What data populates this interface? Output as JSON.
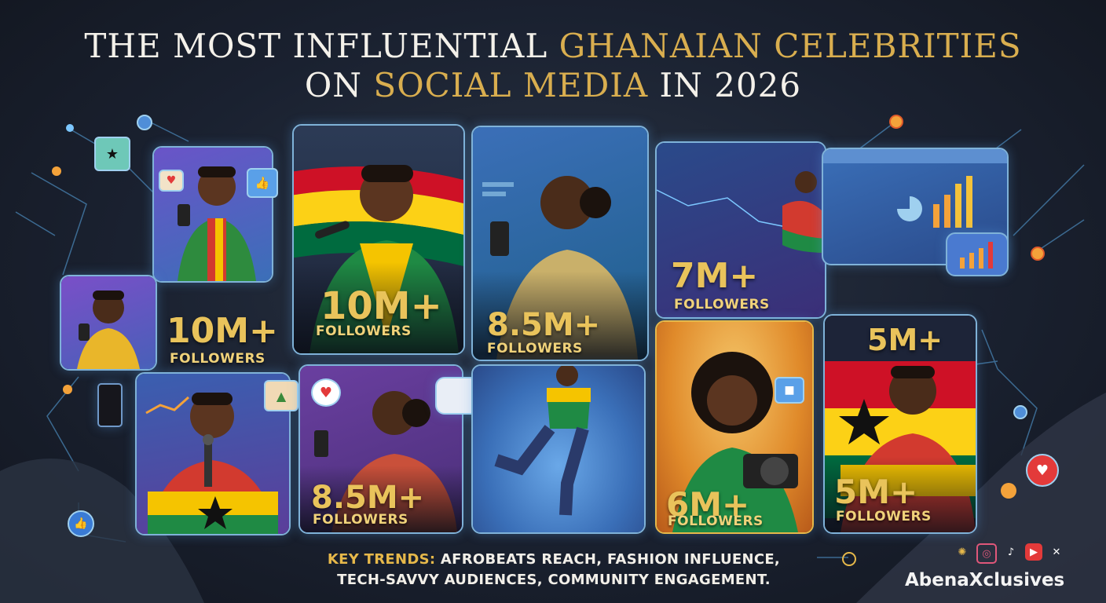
{
  "title": {
    "line1_a": "THE MOST INFLUENTIAL ",
    "line1_b": "GHANAIAN CELEBRITIES",
    "line2_a": "ON ",
    "line2_b": "SOCIAL MEDIA",
    "line2_c": " IN 2026"
  },
  "cards": [
    {
      "id": "card-a",
      "stat": "10M+",
      "label": "FOLLOWERS"
    },
    {
      "id": "card-b",
      "stat": "10M+",
      "label": "FOLLOWERS"
    },
    {
      "id": "card-c",
      "stat": "8.5M+",
      "label": "FOLLOWERS"
    },
    {
      "id": "card-d",
      "stat": "7M+",
      "label": "FOLLOWERS"
    },
    {
      "id": "card-e",
      "stat": "8.5M+",
      "label": "FOLLOWERS"
    },
    {
      "id": "card-f",
      "stat": "6M+",
      "label": "FOLLOWERS"
    },
    {
      "id": "card-g",
      "stat_top": "5M+",
      "stat": "5M+",
      "label": "FOLLOWERS"
    }
  ],
  "trends": {
    "key": "KEY TRENDS:",
    "line1": " AFROBEATS REACH, FASHION INFLUENCE,",
    "line2": "TECH-SAVVY AUDIENCES, COMMUNITY ENGAGEMENT."
  },
  "brand": {
    "name": "AbenaXclusives"
  },
  "social_icons": [
    "network-icon",
    "instagram-icon",
    "tiktok-icon",
    "youtube-icon",
    "x-icon"
  ],
  "colors": {
    "gold": "#d9ae4f",
    "red": "#ce1126",
    "yellow": "#fcd116",
    "green": "#006b3f",
    "frame": "#7fb2d8"
  }
}
